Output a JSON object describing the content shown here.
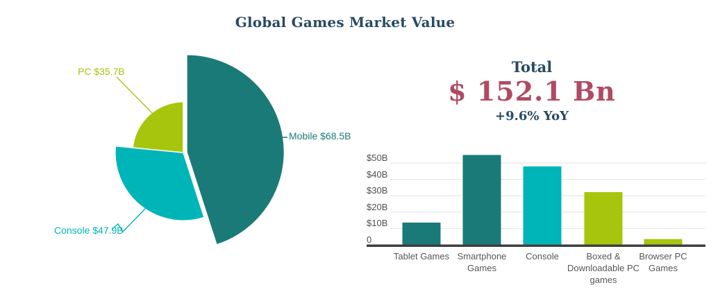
{
  "title": "Global Games Market Value",
  "summary": {
    "label": "Total",
    "value": "$ 152.1 Bn",
    "yoy": "+9.6% YoY"
  },
  "colors": {
    "navy": "#294a62",
    "crimson": "#b04a63",
    "teal_dark": "#1a7a78",
    "cyan": "#00b5b8",
    "olive": "#a7c50c",
    "gridline": "#e2e2e2",
    "axis_line": "#3f3f3f",
    "tick_text": "#4f4f4f",
    "category_text": "#575757",
    "background": "#ffffff"
  },
  "chart_data": [
    {
      "type": "pie",
      "variant": "rose (slice radius proportional to value)",
      "unit": "USD billions",
      "total": 152.1,
      "start_angle_deg": 0,
      "direction": "clockwise from top",
      "slices": [
        {
          "label": "Mobile",
          "display": "Mobile $68.5B",
          "value": 68.5,
          "color": "#1a7a78",
          "exploded": true
        },
        {
          "label": "Console",
          "display": "Console $47.9B",
          "value": 47.9,
          "color": "#00b5b8",
          "exploded": false
        },
        {
          "label": "PC",
          "display": "PC $35.7B",
          "value": 35.7,
          "color": "#a7c50c",
          "exploded": false
        }
      ]
    },
    {
      "type": "bar",
      "unit": "USD billions",
      "categories": [
        "Tablet Games",
        "Smartphone Games",
        "Console",
        "Boxed & Downloadable PC games",
        "Browser PC Games"
      ],
      "values": [
        13.6,
        54.9,
        47.9,
        32.2,
        3.5
      ],
      "bar_colors": [
        "#1a7a78",
        "#1a7a78",
        "#00b5b8",
        "#a7c50c",
        "#a7c50c"
      ],
      "ytick_labels": [
        "0",
        "$10B",
        "$20B",
        "$30B",
        "$40B",
        "$50B"
      ],
      "ytick_values": [
        0,
        10,
        20,
        30,
        40,
        50
      ],
      "ylim": [
        0,
        55
      ],
      "grid": true,
      "legend": "none"
    }
  ]
}
